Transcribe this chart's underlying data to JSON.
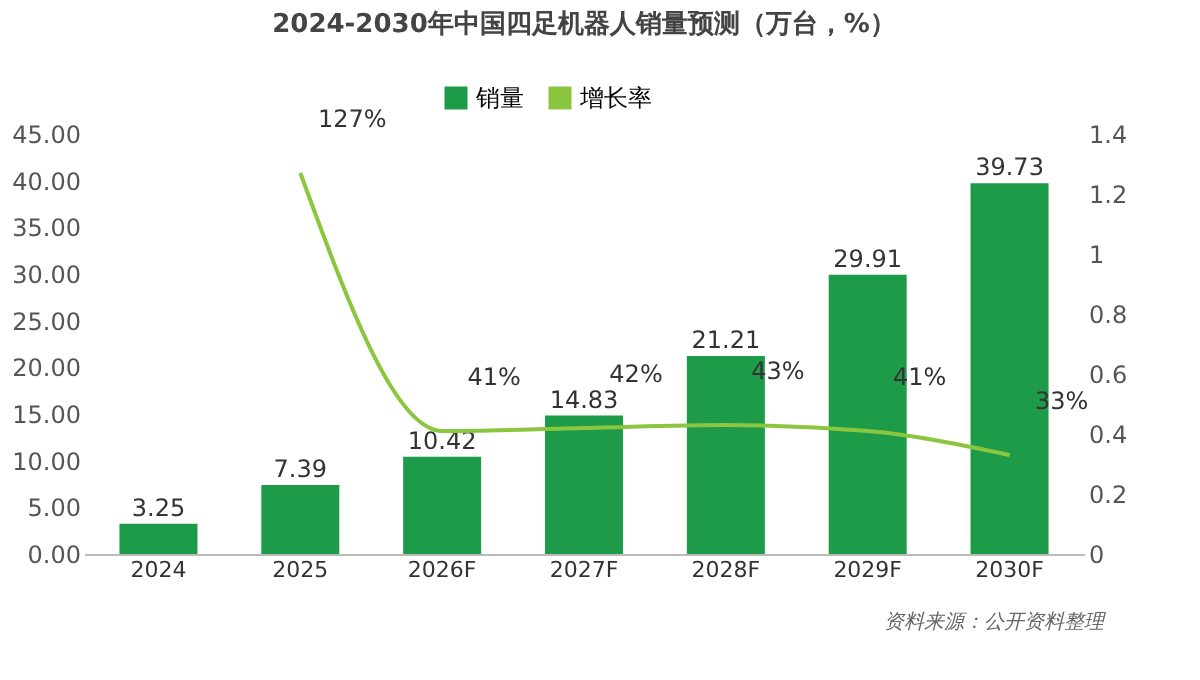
{
  "chart_data": {
    "type": "bar",
    "title": "2024-2030年中国四足机器人销量预测（万台，%）",
    "categories": [
      "2024",
      "2025",
      "2026F",
      "2027F",
      "2028F",
      "2029F",
      "2030F"
    ],
    "series": [
      {
        "name": "销量",
        "type": "bar",
        "color": "#1e9b48",
        "values": [
          3.25,
          7.39,
          10.42,
          14.83,
          21.21,
          29.91,
          39.73
        ]
      },
      {
        "name": "增长率",
        "type": "line",
        "axis": "y2",
        "color": "#8cc63f",
        "values": [
          null,
          1.27,
          0.41,
          0.42,
          0.43,
          0.41,
          0.33
        ],
        "value_labels": [
          null,
          "127%",
          "41%",
          "42%",
          "43%",
          "41%",
          "33%"
        ]
      }
    ],
    "data_labels": true,
    "ylim": [
      0,
      45
    ],
    "yticks": [
      {
        "value": 0,
        "label": "0.00"
      },
      {
        "value": 5,
        "label": "5.00"
      },
      {
        "value": 10,
        "label": "10.00"
      },
      {
        "value": 15,
        "label": "15.00"
      },
      {
        "value": 20,
        "label": "20.00"
      },
      {
        "value": 25,
        "label": "25.00"
      },
      {
        "value": 30,
        "label": "30.00"
      },
      {
        "value": 35,
        "label": "35.00"
      },
      {
        "value": 40,
        "label": "40.00"
      },
      {
        "value": 45,
        "label": "45.00"
      }
    ],
    "y2lim": [
      0,
      1.4
    ],
    "y2ticks": [
      {
        "value": 0,
        "label": "0"
      },
      0.2,
      0.4,
      0.6,
      0.8,
      {
        "value": 1,
        "label": "1"
      },
      1.2,
      1.4
    ],
    "legend": "top",
    "grid": false,
    "line_style": "solid",
    "marker": "none",
    "annotations": [
      "资料来源：公开资料整理"
    ]
  }
}
